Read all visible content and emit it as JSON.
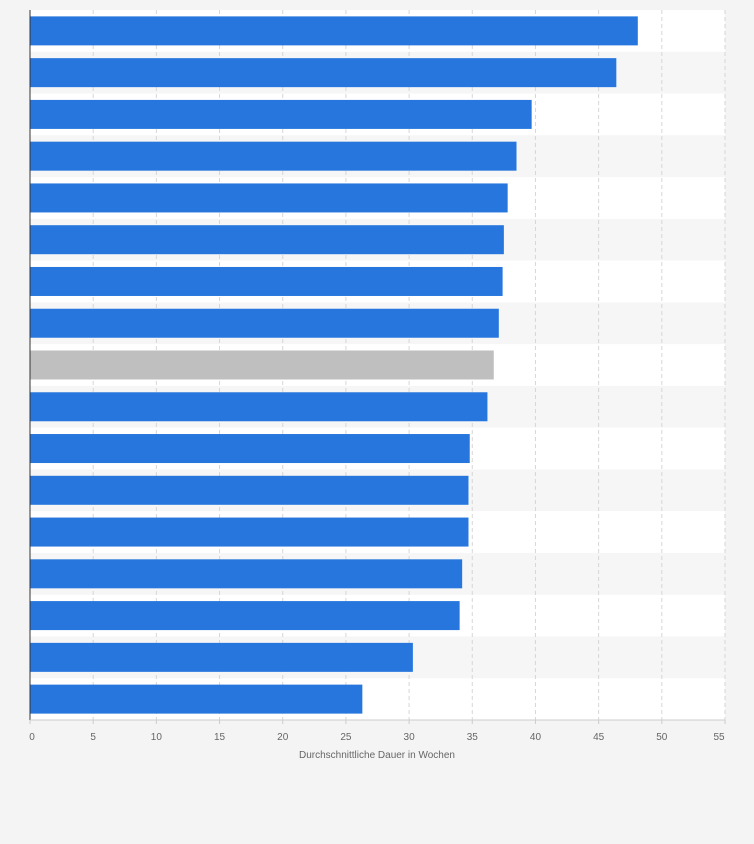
{
  "colors": {
    "background": "#f4f4f4",
    "plot_background": "#ffffff",
    "band_alt": "#f6f6f6",
    "bar": "#2676dd",
    "bar_highlight": "#bfbfbf",
    "grid": "#d6d6d6",
    "axis": "#333333",
    "tick_text": "#666666"
  },
  "chart_data": {
    "type": "bar",
    "orientation": "horizontal",
    "title": "",
    "xlabel": "Durchschnittliche Dauer in Wochen",
    "ylabel": "",
    "xlim": [
      0,
      55
    ],
    "xticks": [
      0,
      5,
      10,
      15,
      20,
      25,
      30,
      35,
      40,
      45,
      50,
      55
    ],
    "grid": true,
    "legend": "none",
    "values": [
      48.1,
      46.4,
      39.7,
      38.5,
      37.8,
      37.5,
      37.4,
      37.1,
      36.7,
      36.2,
      34.8,
      34.7,
      34.7,
      34.2,
      34.0,
      30.3,
      26.3
    ],
    "highlight_index": 8
  }
}
